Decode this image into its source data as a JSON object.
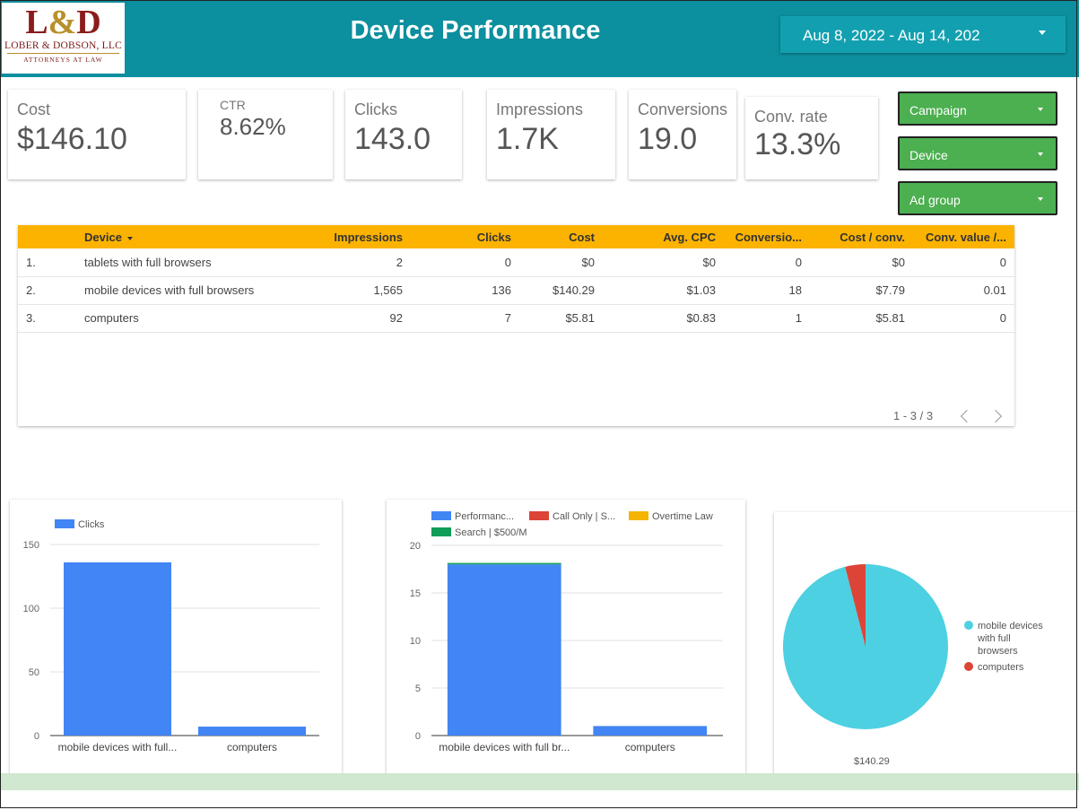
{
  "header": {
    "logo": {
      "mark_left": "L",
      "mark_amp": "&",
      "mark_right": "D",
      "firm": "LOBER & DOBSON, LLC",
      "sub": "ATTORNEYS AT LAW"
    },
    "title": "Device Performance",
    "date_range": "Aug 8, 2022 - Aug 14, 202"
  },
  "scorecards": [
    {
      "label": "Cost",
      "value": "$146.10"
    },
    {
      "label": "CTR",
      "value": "8.62%"
    },
    {
      "label": "Clicks",
      "value": "143.0"
    },
    {
      "label": "Impressions",
      "value": "1.7K"
    },
    {
      "label": "Conversions",
      "value": "19.0"
    },
    {
      "label": "Conv. rate",
      "value": "13.3%"
    }
  ],
  "filters": [
    "Campaign",
    "Device",
    "Ad group"
  ],
  "table": {
    "headers": [
      "Device",
      "Impressions",
      "Clicks",
      "Cost",
      "Avg. CPC",
      "Conversio...",
      "Cost / conv.",
      "Conv. value /..."
    ],
    "rows": [
      [
        "1.",
        "tablets with full browsers",
        "2",
        "0",
        "$0",
        "$0",
        "0",
        "$0",
        "0"
      ],
      [
        "2.",
        "mobile devices with full browsers",
        "1,565",
        "136",
        "$140.29",
        "$1.03",
        "18",
        "$7.79",
        "0.01"
      ],
      [
        "3.",
        "computers",
        "92",
        "7",
        "$5.81",
        "$0.83",
        "1",
        "$5.81",
        "0"
      ]
    ],
    "pagination": "1 - 3 / 3"
  },
  "chart_data": [
    {
      "type": "bar",
      "legend": [
        "Clicks"
      ],
      "categories": [
        "mobile devices with full...",
        "computers"
      ],
      "series": [
        {
          "name": "Clicks",
          "values": [
            136,
            7
          ],
          "color": "#4285f4"
        }
      ],
      "yticks": [
        0,
        50,
        100,
        150
      ],
      "ylim": [
        0,
        150
      ],
      "grid": true,
      "legend_position": "top-left"
    },
    {
      "type": "bar",
      "stacked": true,
      "legend": [
        "Performanc...",
        "Call Only | S...",
        "Overtime Law",
        "Search | $500/M"
      ],
      "legend_colors": [
        "#4285f4",
        "#db4437",
        "#f4b400",
        "#0f9d58"
      ],
      "categories": [
        "mobile devices with full br...",
        "computers"
      ],
      "series": [
        {
          "name": "Performanc...",
          "values": [
            18,
            1
          ],
          "color": "#4285f4"
        },
        {
          "name": "Search | $500/M",
          "values": [
            0.15,
            0
          ],
          "color": "#0f9d58"
        }
      ],
      "yticks": [
        0,
        5,
        10,
        15,
        20
      ],
      "ylim": [
        0,
        20
      ],
      "grid": true,
      "legend_position": "top"
    },
    {
      "type": "pie",
      "slices": [
        {
          "label": "mobile devices with full browsers",
          "value": 140.29,
          "color": "#4dd0e1",
          "data_label": "$140.29"
        },
        {
          "label": "computers",
          "value": 5.81,
          "color": "#db4437"
        }
      ],
      "legend_position": "right",
      "legend_lines": [
        [
          "mobile devices",
          "with full",
          "browsers"
        ],
        [
          "computers"
        ]
      ]
    }
  ]
}
